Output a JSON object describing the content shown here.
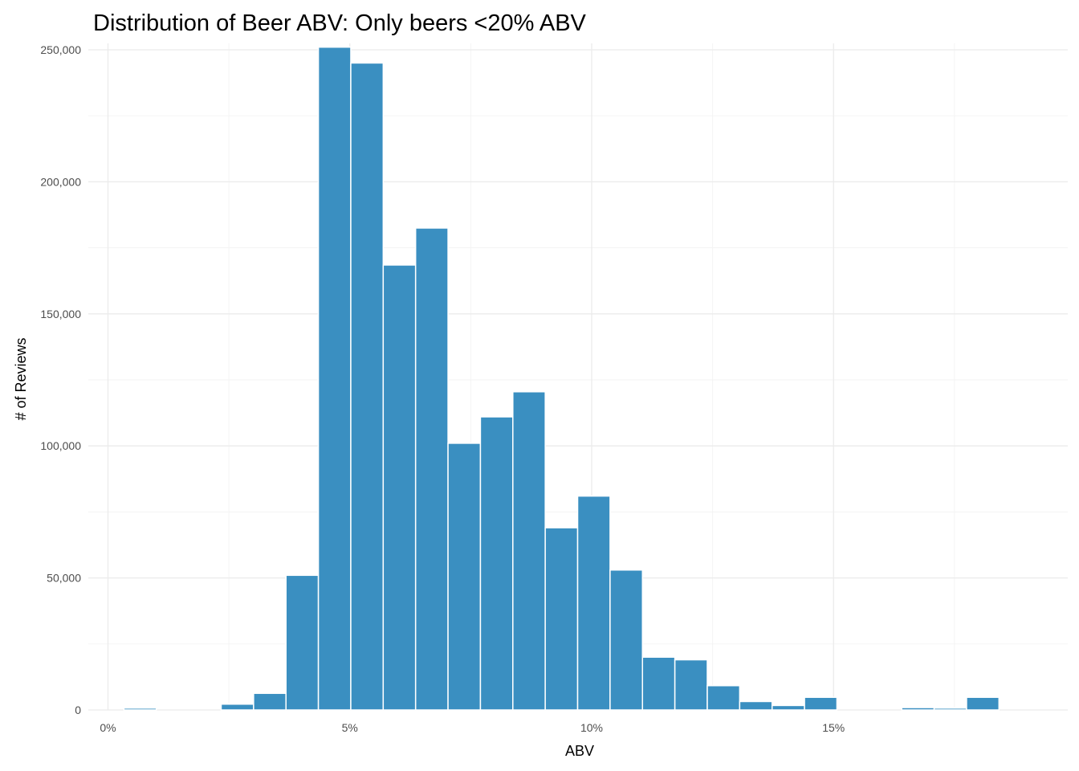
{
  "chart_data": {
    "type": "bar",
    "title": "Distribution of Beer ABV: Only beers <20% ABV",
    "xlabel": "ABV",
    "ylabel": "# of Reviews",
    "bar_color": "#3a8fc1",
    "grid": true,
    "legend": "none",
    "xlim": [
      -0.6,
      19.5
    ],
    "ylim": [
      0,
      252000
    ],
    "x_ticks": [
      {
        "value": 0,
        "label": "0%"
      },
      {
        "value": 5,
        "label": "5%"
      },
      {
        "value": 10,
        "label": "10%"
      },
      {
        "value": 15,
        "label": "15%"
      }
    ],
    "y_ticks": [
      {
        "value": 0,
        "label": "0"
      },
      {
        "value": 50000,
        "label": "50,000"
      },
      {
        "value": 100000,
        "label": "100,000"
      },
      {
        "value": 150000,
        "label": "150,000"
      },
      {
        "value": 200000,
        "label": "200,000"
      },
      {
        "value": 250000,
        "label": "250,000"
      }
    ],
    "bins": [
      {
        "x0": 0.33,
        "x1": 1.0,
        "count": 700
      },
      {
        "x0": 1.0,
        "x1": 1.67,
        "count": 0
      },
      {
        "x0": 1.67,
        "x1": 2.34,
        "count": 0
      },
      {
        "x0": 2.34,
        "x1": 3.01,
        "count": 2200
      },
      {
        "x0": 3.01,
        "x1": 3.68,
        "count": 6300
      },
      {
        "x0": 3.68,
        "x1": 4.35,
        "count": 51000
      },
      {
        "x0": 4.35,
        "x1": 5.02,
        "count": 251000
      },
      {
        "x0": 5.02,
        "x1": 5.69,
        "count": 245000
      },
      {
        "x0": 5.69,
        "x1": 6.36,
        "count": 168500
      },
      {
        "x0": 6.36,
        "x1": 7.03,
        "count": 182500
      },
      {
        "x0": 7.03,
        "x1": 7.7,
        "count": 101000
      },
      {
        "x0": 7.7,
        "x1": 8.37,
        "count": 111000
      },
      {
        "x0": 8.37,
        "x1": 9.04,
        "count": 120500
      },
      {
        "x0": 9.04,
        "x1": 9.71,
        "count": 69000
      },
      {
        "x0": 9.71,
        "x1": 10.38,
        "count": 81000
      },
      {
        "x0": 10.38,
        "x1": 11.05,
        "count": 53000
      },
      {
        "x0": 11.05,
        "x1": 11.72,
        "count": 20000
      },
      {
        "x0": 11.72,
        "x1": 12.39,
        "count": 19000
      },
      {
        "x0": 12.39,
        "x1": 13.06,
        "count": 9200
      },
      {
        "x0": 13.06,
        "x1": 13.73,
        "count": 3200
      },
      {
        "x0": 13.73,
        "x1": 14.4,
        "count": 1700
      },
      {
        "x0": 14.4,
        "x1": 15.07,
        "count": 4800
      },
      {
        "x0": 15.07,
        "x1": 15.74,
        "count": 0
      },
      {
        "x0": 15.74,
        "x1": 16.41,
        "count": 0
      },
      {
        "x0": 16.41,
        "x1": 17.08,
        "count": 900
      },
      {
        "x0": 17.08,
        "x1": 17.75,
        "count": 700
      },
      {
        "x0": 17.75,
        "x1": 18.42,
        "count": 4800
      }
    ]
  }
}
